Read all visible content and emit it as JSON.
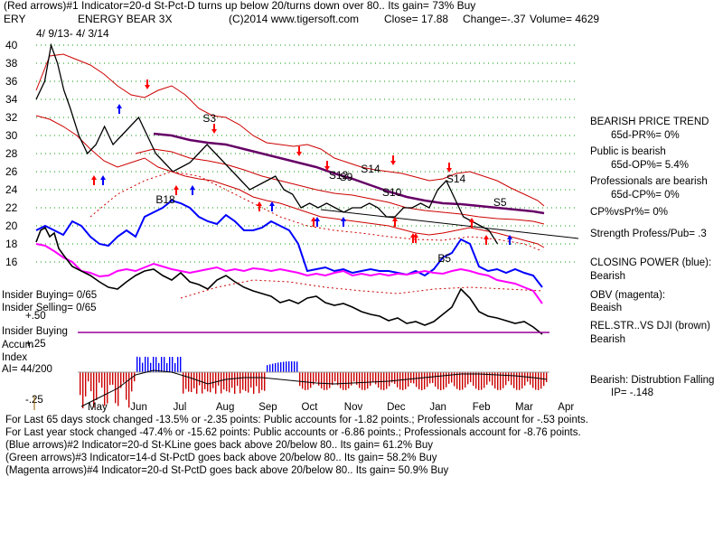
{
  "header": {
    "line1": "(Red arrows)#1 Indicator=20-d St-Pct-D turns up below 20/turns down over 80.. Its gain= 73% Buy",
    "ticker": "ERY",
    "name": "ENERGY BEAR 3X",
    "copyright": "(C)2014 www.tigersoft.com",
    "close": "Close=  17.88",
    "change": "Change=-.37",
    "volume": "Volume= 4629",
    "date_range": "4/ 9/13- 4/ 3/14"
  },
  "right_panel": {
    "trend_title": "BEARISH PRICE TREND",
    "pr": "65d-PR%= 0%",
    "public": "Public is bearish",
    "op": "65d-OP%= 5.4%",
    "professionals": "Professionals are bearish",
    "cp": "65d-CP%= 0%",
    "cpvspr": "CP%vsPr%=  0%",
    "strength": "Strength Profess/Pub= .3",
    "closing_power_title": "CLOSING POWER (blue):",
    "closing_power_value": "Bearish",
    "obv_title": "OBV (magenta):",
    "obv_value": "Beaish",
    "relstr_title": "REL.STR..VS DJI (brown)",
    "relstr_value": "Bearish",
    "distribution_title": "Bearish: Distrubtion Falling",
    "ip": "IP= -.148"
  },
  "left_panel": {
    "insider_buying": "Insider Buying= 0/65",
    "insider_selling": "Insider Selling= 0/65",
    "plus50": "+.50",
    "insider_buying_label": "Insider Buying",
    "accum": "Accum",
    "plus25": "+.25",
    "index": "Index",
    "ai": "AI= 44/200",
    "minus25": "-.25"
  },
  "footer": [
    "For Last 65 days stock changed -13.5% or -2.35 points:  Public accounts for -1.82 points.;  Professionals account for -.53 points.",
    "For Last year stock changed -47.4% or -15.62 points:  Public accounts or -6.86 points.;  Professionals account for -8.76 points.",
    "(Blue arrows)#2 Indicator=20-d St-KLine goes back above 20/below 80.. Its gain= 61.2% Buy",
    "(Green arrows)#3 Indicator=14-d St-PctD goes back above 20/below 80.. Its gain= 58.2% Buy",
    "(Magenta arrows)#4 Indicator=20-d St-PctD goes back above 20/below 80.. Its gain= 50.9% Buy"
  ],
  "colors": {
    "price": "#000000",
    "upper_band": "#cc0000",
    "ma": "#660066",
    "closing_power": "#0000ff",
    "obv": "#ff00ff",
    "relstr": "#000000",
    "buy_arrow": "#ff0000",
    "blue_arrow": "#0000ff",
    "ai_up": "#0000ff",
    "ai_down": "#cc0000"
  },
  "chart_data": {
    "type": "line",
    "title": "ENERGY BEAR 3X",
    "y_ticks": [
      40,
      38,
      36,
      34,
      32,
      30,
      28,
      26,
      24,
      22,
      20,
      18,
      16
    ],
    "ylim": [
      16,
      41
    ],
    "x_ticks": [
      "May",
      "Jun",
      "Jul",
      "Aug",
      "Sep",
      "Oct",
      "Nov",
      "Dec",
      "Jan",
      "Feb",
      "Mar",
      "Apr"
    ],
    "signals": [
      {
        "label": "S3",
        "x": 3.9,
        "y": 31.5
      },
      {
        "label": "S12",
        "x": 6.85,
        "y": 25.2
      },
      {
        "label": "S9",
        "x": 7.1,
        "y": 25.0
      },
      {
        "label": "S14",
        "x": 7.6,
        "y": 25.9
      },
      {
        "label": "S10",
        "x": 8.1,
        "y": 23.3
      },
      {
        "label": "S14",
        "x": 9.6,
        "y": 24.8
      },
      {
        "label": "S5",
        "x": 10.7,
        "y": 22.2
      },
      {
        "label": "B18",
        "x": 2.8,
        "y": 22.5
      },
      {
        "label": "B5",
        "x": 9.4,
        "y": 16.0
      }
    ],
    "series": [
      {
        "values_x": [
          0.0,
          0.2,
          0.35,
          0.5,
          0.65,
          0.8,
          1.0,
          1.2,
          1.4,
          1.6,
          1.8,
          2.0,
          2.2,
          2.4,
          2.6,
          2.8,
          3.0,
          3.2,
          3.4,
          3.6,
          3.8,
          4.0,
          4.2,
          4.4,
          4.6,
          4.8,
          5.0,
          5.2,
          5.4,
          5.6,
          5.8,
          6.0,
          6.2,
          6.4,
          6.6,
          6.8,
          7.0,
          7.2,
          7.4,
          7.6,
          7.8,
          8.0,
          8.2,
          8.4,
          8.6,
          8.8,
          9.0,
          9.2,
          9.4,
          9.6,
          9.8,
          10.0,
          10.2,
          10.4,
          10.6,
          10.8
        ],
        "values": [
          34,
          36,
          40,
          38,
          35,
          33,
          30,
          28,
          29,
          31,
          29,
          30,
          31,
          32,
          30,
          28,
          27,
          26,
          26.5,
          27,
          28,
          29,
          28,
          27,
          26,
          25,
          24,
          24.5,
          25,
          25.5,
          24,
          23.5,
          22,
          22.5,
          22,
          22.5,
          22,
          21.5,
          22,
          22,
          22.5,
          22,
          21,
          21,
          22,
          22,
          22.5,
          22,
          24,
          25,
          23,
          21,
          20.5,
          20,
          19.5,
          18
        ]
      }
    ]
  }
}
